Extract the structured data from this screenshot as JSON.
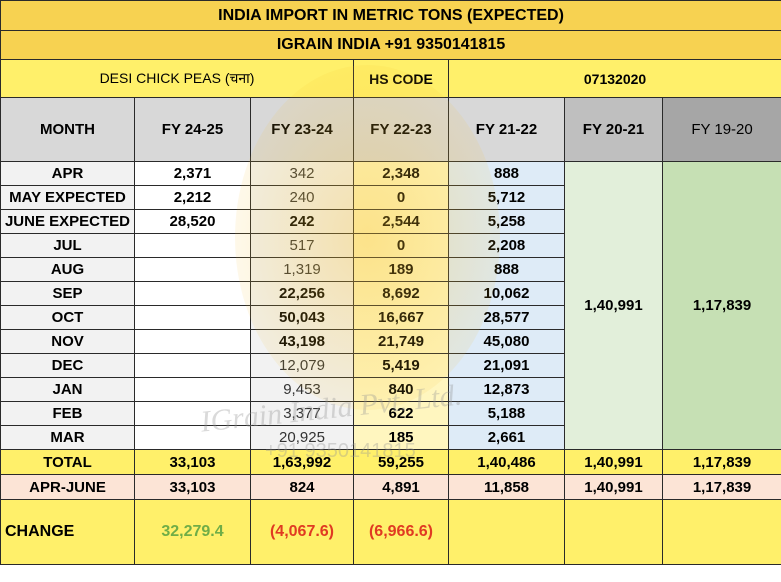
{
  "title": {
    "line1": "INDIA IMPORT IN METRIC TONS (EXPECTED)",
    "line2": "IGRAIN INDIA +91 9350141815"
  },
  "subheader": {
    "commodity": "DESI CHICK PEAS (चना)",
    "hs_label": "HS CODE",
    "hs_value": "07132020"
  },
  "columns": [
    "MONTH",
    "FY 24-25",
    "FY 23-24",
    "FY 22-23",
    "FY 21-22",
    "FY 20-21",
    "FY 19-20"
  ],
  "rows": [
    {
      "month": "APR",
      "fy2425": "2,371",
      "fy2324": "342",
      "fy2223": "2,348",
      "fy2122": "888"
    },
    {
      "month": "MAY EXPECTED",
      "fy2425": "2,212",
      "fy2324": "240",
      "fy2223": "0",
      "fy2122": "5,712"
    },
    {
      "month": "JUNE EXPECTED",
      "fy2425": "28,520",
      "fy2324": "242",
      "fy2223": "2,544",
      "fy2122": "5,258"
    },
    {
      "month": "JUL",
      "fy2425": "",
      "fy2324": "517",
      "fy2223": "0",
      "fy2122": "2,208"
    },
    {
      "month": "AUG",
      "fy2425": "",
      "fy2324": "1,319",
      "fy2223": "189",
      "fy2122": "888"
    },
    {
      "month": "SEP",
      "fy2425": "",
      "fy2324": "22,256",
      "fy2223": "8,692",
      "fy2122": "10,062"
    },
    {
      "month": "OCT",
      "fy2425": "",
      "fy2324": "50,043",
      "fy2223": "16,667",
      "fy2122": "28,577"
    },
    {
      "month": "NOV",
      "fy2425": "",
      "fy2324": "43,198",
      "fy2223": "21,749",
      "fy2122": "45,080"
    },
    {
      "month": "DEC",
      "fy2425": "",
      "fy2324": "12,079",
      "fy2223": "5,419",
      "fy2122": "21,091"
    },
    {
      "month": "JAN",
      "fy2425": "",
      "fy2324": "9,453",
      "fy2223": "840",
      "fy2122": "12,873"
    },
    {
      "month": "FEB",
      "fy2425": "",
      "fy2324": "3,377",
      "fy2223": "622",
      "fy2122": "5,188"
    },
    {
      "month": "MAR",
      "fy2425": "",
      "fy2324": "20,925",
      "fy2223": "185",
      "fy2122": "2,661"
    }
  ],
  "merged": {
    "fy2021": "1,40,991",
    "fy1920": "1,17,839"
  },
  "total": {
    "label": "TOTAL",
    "values": [
      "33,103",
      "1,63,992",
      "59,255",
      "1,40,486",
      "1,40,991",
      "1,17,839"
    ]
  },
  "aprjune": {
    "label": "APR-JUNE",
    "values": [
      "33,103",
      "824",
      "4,891",
      "11,858",
      "1,40,991",
      "1,17,839"
    ]
  },
  "change": {
    "label": "CHANGE",
    "fy2425": "32,279.4",
    "fy2324": "(4,067.6)",
    "fy2223": "(6,966.6)"
  },
  "watermark": {
    "logo_letter": "G",
    "company": "IGrain India Pvt. Ltd.",
    "phone": "+91 9350141815"
  },
  "colors": {
    "title_bg": "#f7d251",
    "yellow": "#fff06a",
    "header_gray": "#d8d8d8",
    "blue": "#deebf7",
    "light_green": "#e2efda",
    "green": "#c6e0b4",
    "peach": "#fce4d6",
    "positive": "#70ad47",
    "negative": "#e03a22"
  }
}
